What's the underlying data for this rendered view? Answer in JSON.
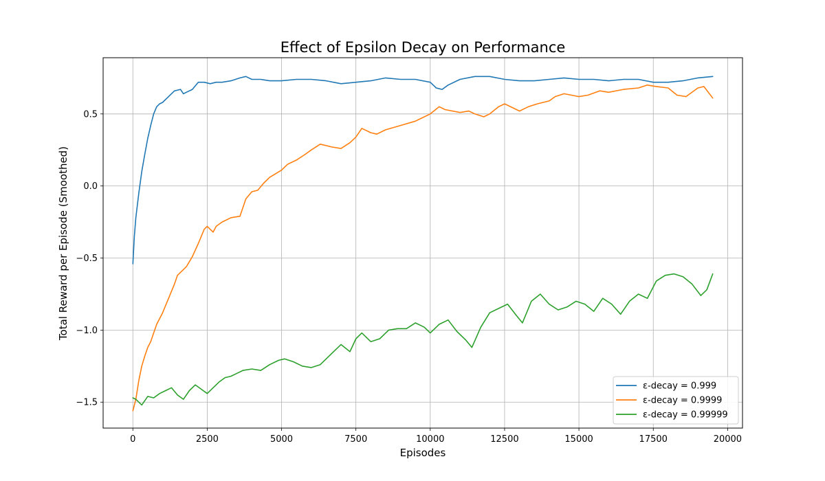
{
  "chart_data": {
    "type": "line",
    "title": "Effect of Epsilon Decay on Performance",
    "xlabel": "Episodes",
    "ylabel": "Total Reward per Episode (Smoothed)",
    "xlim": [
      -1000,
      20500
    ],
    "ylim": [
      -1.68,
      0.89
    ],
    "x_ticks": [
      0,
      2500,
      5000,
      7500,
      10000,
      12500,
      15000,
      17500,
      20000
    ],
    "x_tick_labels": [
      "0",
      "2500",
      "5000",
      "7500",
      "10000",
      "12500",
      "15000",
      "17500",
      "20000"
    ],
    "y_ticks": [
      -1.5,
      -1.0,
      -0.5,
      0.0,
      0.5
    ],
    "y_tick_labels": [
      "−1.5",
      "−1.0",
      "−0.5",
      "0.0",
      "0.5"
    ],
    "grid": true,
    "legend_position": "lower-right",
    "series": [
      {
        "name": "ε-decay = 0.999",
        "color": "#1f77b4",
        "x": [
          0,
          50,
          100,
          200,
          300,
          400,
          500,
          600,
          700,
          800,
          900,
          1000,
          1200,
          1400,
          1600,
          1700,
          1800,
          2000,
          2200,
          2400,
          2600,
          2800,
          3000,
          3300,
          3600,
          3800,
          4000,
          4300,
          4600,
          5000,
          5500,
          6000,
          6500,
          7000,
          7500,
          8000,
          8500,
          9000,
          9500,
          10000,
          10200,
          10400,
          10600,
          11000,
          11500,
          12000,
          12500,
          13000,
          13500,
          14000,
          14500,
          15000,
          15500,
          16000,
          16500,
          17000,
          17500,
          18000,
          18500,
          19000,
          19500
        ],
        "y": [
          -0.54,
          -0.35,
          -0.22,
          -0.05,
          0.1,
          0.22,
          0.33,
          0.42,
          0.5,
          0.55,
          0.57,
          0.58,
          0.62,
          0.66,
          0.67,
          0.64,
          0.65,
          0.67,
          0.72,
          0.72,
          0.71,
          0.72,
          0.72,
          0.73,
          0.75,
          0.76,
          0.74,
          0.74,
          0.73,
          0.73,
          0.74,
          0.74,
          0.73,
          0.71,
          0.72,
          0.73,
          0.75,
          0.74,
          0.74,
          0.72,
          0.68,
          0.67,
          0.7,
          0.74,
          0.76,
          0.76,
          0.74,
          0.73,
          0.73,
          0.74,
          0.75,
          0.74,
          0.74,
          0.73,
          0.74,
          0.74,
          0.72,
          0.72,
          0.73,
          0.75,
          0.76
        ]
      },
      {
        "name": "ε-decay = 0.9999",
        "color": "#ff7f0e",
        "x": [
          0,
          100,
          200,
          300,
          400,
          500,
          600,
          700,
          800,
          900,
          1000,
          1200,
          1400,
          1500,
          1700,
          1800,
          2000,
          2200,
          2400,
          2500,
          2700,
          2800,
          3000,
          3300,
          3600,
          3800,
          4000,
          4200,
          4400,
          4600,
          5000,
          5200,
          5500,
          5800,
          6000,
          6300,
          6700,
          7000,
          7300,
          7500,
          7700,
          8000,
          8200,
          8500,
          9000,
          9500,
          9700,
          10000,
          10300,
          10500,
          11000,
          11300,
          11500,
          11800,
          12000,
          12300,
          12500,
          12800,
          13000,
          13300,
          13600,
          14000,
          14200,
          14500,
          15000,
          15300,
          15700,
          16000,
          16500,
          17000,
          17300,
          17600,
          18000,
          18300,
          18600,
          19000,
          19200,
          19500
        ],
        "y": [
          -1.56,
          -1.48,
          -1.35,
          -1.25,
          -1.18,
          -1.12,
          -1.08,
          -1.02,
          -0.96,
          -0.92,
          -0.88,
          -0.78,
          -0.68,
          -0.62,
          -0.58,
          -0.56,
          -0.49,
          -0.4,
          -0.3,
          -0.28,
          -0.32,
          -0.28,
          -0.25,
          -0.22,
          -0.21,
          -0.09,
          -0.04,
          -0.03,
          0.02,
          0.06,
          0.11,
          0.15,
          0.18,
          0.22,
          0.25,
          0.29,
          0.27,
          0.26,
          0.3,
          0.34,
          0.4,
          0.37,
          0.36,
          0.39,
          0.42,
          0.45,
          0.47,
          0.5,
          0.55,
          0.53,
          0.51,
          0.52,
          0.5,
          0.48,
          0.5,
          0.55,
          0.57,
          0.54,
          0.52,
          0.55,
          0.57,
          0.59,
          0.62,
          0.64,
          0.62,
          0.63,
          0.66,
          0.65,
          0.67,
          0.68,
          0.7,
          0.69,
          0.68,
          0.63,
          0.62,
          0.68,
          0.69,
          0.61
        ]
      },
      {
        "name": "ε-decay = 0.99999",
        "color": "#2ca02c",
        "x": [
          0,
          100,
          300,
          500,
          700,
          900,
          1100,
          1300,
          1500,
          1700,
          1900,
          2100,
          2300,
          2500,
          2700,
          2900,
          3100,
          3300,
          3500,
          3700,
          4000,
          4300,
          4600,
          4900,
          5100,
          5400,
          5700,
          6000,
          6300,
          6500,
          6800,
          7000,
          7300,
          7500,
          7700,
          8000,
          8300,
          8600,
          8900,
          9200,
          9500,
          9800,
          10000,
          10300,
          10600,
          10900,
          11200,
          11400,
          11700,
          12000,
          12300,
          12600,
          12900,
          13100,
          13400,
          13700,
          14000,
          14300,
          14600,
          14900,
          15200,
          15500,
          15800,
          16100,
          16400,
          16700,
          17000,
          17300,
          17600,
          17900,
          18200,
          18500,
          18800,
          19100,
          19300,
          19500
        ],
        "y": [
          -1.47,
          -1.48,
          -1.52,
          -1.46,
          -1.47,
          -1.44,
          -1.42,
          -1.4,
          -1.45,
          -1.48,
          -1.42,
          -1.38,
          -1.41,
          -1.44,
          -1.4,
          -1.36,
          -1.33,
          -1.32,
          -1.3,
          -1.28,
          -1.27,
          -1.28,
          -1.24,
          -1.21,
          -1.2,
          -1.22,
          -1.25,
          -1.26,
          -1.24,
          -1.2,
          -1.14,
          -1.1,
          -1.15,
          -1.06,
          -1.02,
          -1.08,
          -1.06,
          -1.0,
          -0.99,
          -0.99,
          -0.95,
          -0.98,
          -1.02,
          -0.96,
          -0.93,
          -1.01,
          -1.07,
          -1.12,
          -0.98,
          -0.88,
          -0.85,
          -0.82,
          -0.9,
          -0.95,
          -0.8,
          -0.75,
          -0.82,
          -0.86,
          -0.84,
          -0.8,
          -0.82,
          -0.87,
          -0.78,
          -0.82,
          -0.89,
          -0.8,
          -0.75,
          -0.78,
          -0.66,
          -0.62,
          -0.61,
          -0.63,
          -0.68,
          -0.76,
          -0.72,
          -0.61
        ]
      }
    ]
  }
}
